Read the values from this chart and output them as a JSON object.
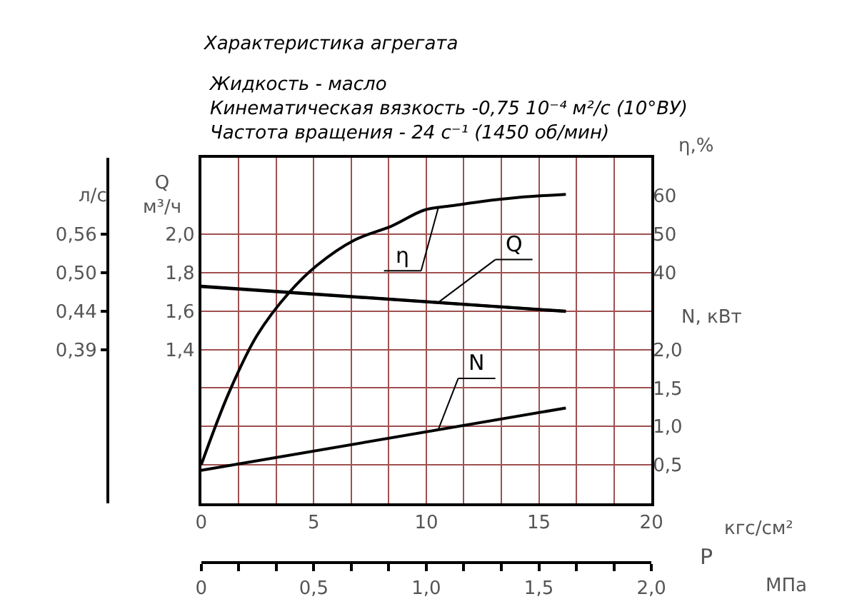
{
  "chart_data": [
    {
      "type": "line",
      "title": "Характеристика агрегата",
      "subtitle": "Жидкость - масло\nКинематическая вязкость -0,75 10⁻⁴ м²/с (10°ВУ)\nЧастота вращения - 24 с⁻¹ (1450 об/мин)",
      "xlabel": "кгс/см²",
      "x2label": "МПа",
      "ylabel": "Q\nм³/ч",
      "y2label": "η,%",
      "y3label": "N, кВт",
      "annotations": [
        "P"
      ],
      "series": [
        {
          "name": "η",
          "color": "#000000",
          "axis": "y2",
          "x": [
            0,
            1.24,
            2.48,
            3.9,
            5.14,
            6.81,
            8.48,
            9.91,
            11.1,
            12.4,
            14.1,
            16.2
          ],
          "values": [
            -10,
            8.9,
            23.7,
            34.8,
            41.9,
            48.5,
            52.2,
            56.3,
            57.4,
            58.5,
            59.6,
            60.4
          ]
        },
        {
          "name": "Q",
          "color": "#000000",
          "axis": "y",
          "x": [
            0,
            16.2
          ],
          "values": [
            1.73,
            1.6
          ]
        },
        {
          "name": "N",
          "color": "#000000",
          "axis": "y3",
          "x": [
            0,
            16.2
          ],
          "values": [
            0.43,
            1.24
          ]
        }
      ],
      "xlim": [
        0,
        20
      ],
      "xticks": [
        0,
        {
          "value": 1.667,
          "label": null
        },
        {
          "value": 3.333,
          "label": null
        },
        5,
        {
          "value": 6.667,
          "label": null
        },
        {
          "value": 8.333,
          "label": null
        },
        10,
        {
          "value": 11.667,
          "label": null
        },
        {
          "value": 13.333,
          "label": null
        },
        15,
        {
          "value": 16.667,
          "label": null
        },
        {
          "value": 18.333,
          "label": null
        },
        20
      ],
      "x2lim": [
        0,
        2.0
      ],
      "x2ticks": [
        0,
        {
          "value": 0.1667,
          "label": null
        },
        {
          "value": 0.3333,
          "label": null
        },
        {
          "value": 0.5,
          "label": "0,5"
        },
        {
          "value": 0.6667,
          "label": null
        },
        {
          "value": 0.8333,
          "label": null
        },
        {
          "value": 1.0,
          "label": "1,0"
        },
        {
          "value": 1.1667,
          "label": null
        },
        {
          "value": 1.3333,
          "label": null
        },
        {
          "value": 1.5,
          "label": "1,5"
        },
        {
          "value": 1.6667,
          "label": null
        },
        {
          "value": 1.8333,
          "label": null
        },
        {
          "value": 2.0,
          "label": "2,0"
        }
      ],
      "ylim": [
        0.6,
        2.4
      ],
      "yticks": [
        {
          "value": 0.8,
          "label": null
        },
        {
          "value": 1.0,
          "label": null
        },
        {
          "value": 1.2,
          "label": null
        },
        {
          "value": 1.4,
          "label": "1,4"
        },
        {
          "value": 1.6,
          "label": "1,6"
        },
        {
          "value": 1.8,
          "label": "1,8"
        },
        {
          "value": 2.0,
          "label": "2,0"
        }
      ],
      "y2lim": [
        -20,
        70
      ],
      "y2ticks": [
        40,
        50,
        60
      ],
      "y3lim": [
        0,
        4.5
      ],
      "y3ticks": [
        {
          "value": 0.5,
          "label": "0,5"
        },
        {
          "value": 1.0,
          "label": "1,0"
        },
        {
          "value": 1.5,
          "label": "1,5"
        },
        {
          "value": 2.0,
          "label": "2,0"
        }
      ],
      "grid": true,
      "marker": "none",
      "line_style": "solid"
    },
    {
      "type": "line",
      "ylabel": "л/с",
      "ylim": [
        0.1667,
        0.6667
      ],
      "xlim": [
        0,
        20
      ],
      "tick_labels": "y",
      "series": [
        {
          "color": "#000000",
          "x": [
            0,
            16.2
          ],
          "values": [
            0.48,
            0.444
          ]
        }
      ],
      "yticks": [
        {
          "value": 0.3889,
          "label": "0,39"
        },
        {
          "value": 0.4444,
          "label": "0,44"
        },
        {
          "value": 0.5,
          "label": "0,50"
        },
        {
          "value": 0.5556,
          "label": "0,56"
        }
      ]
    }
  ]
}
